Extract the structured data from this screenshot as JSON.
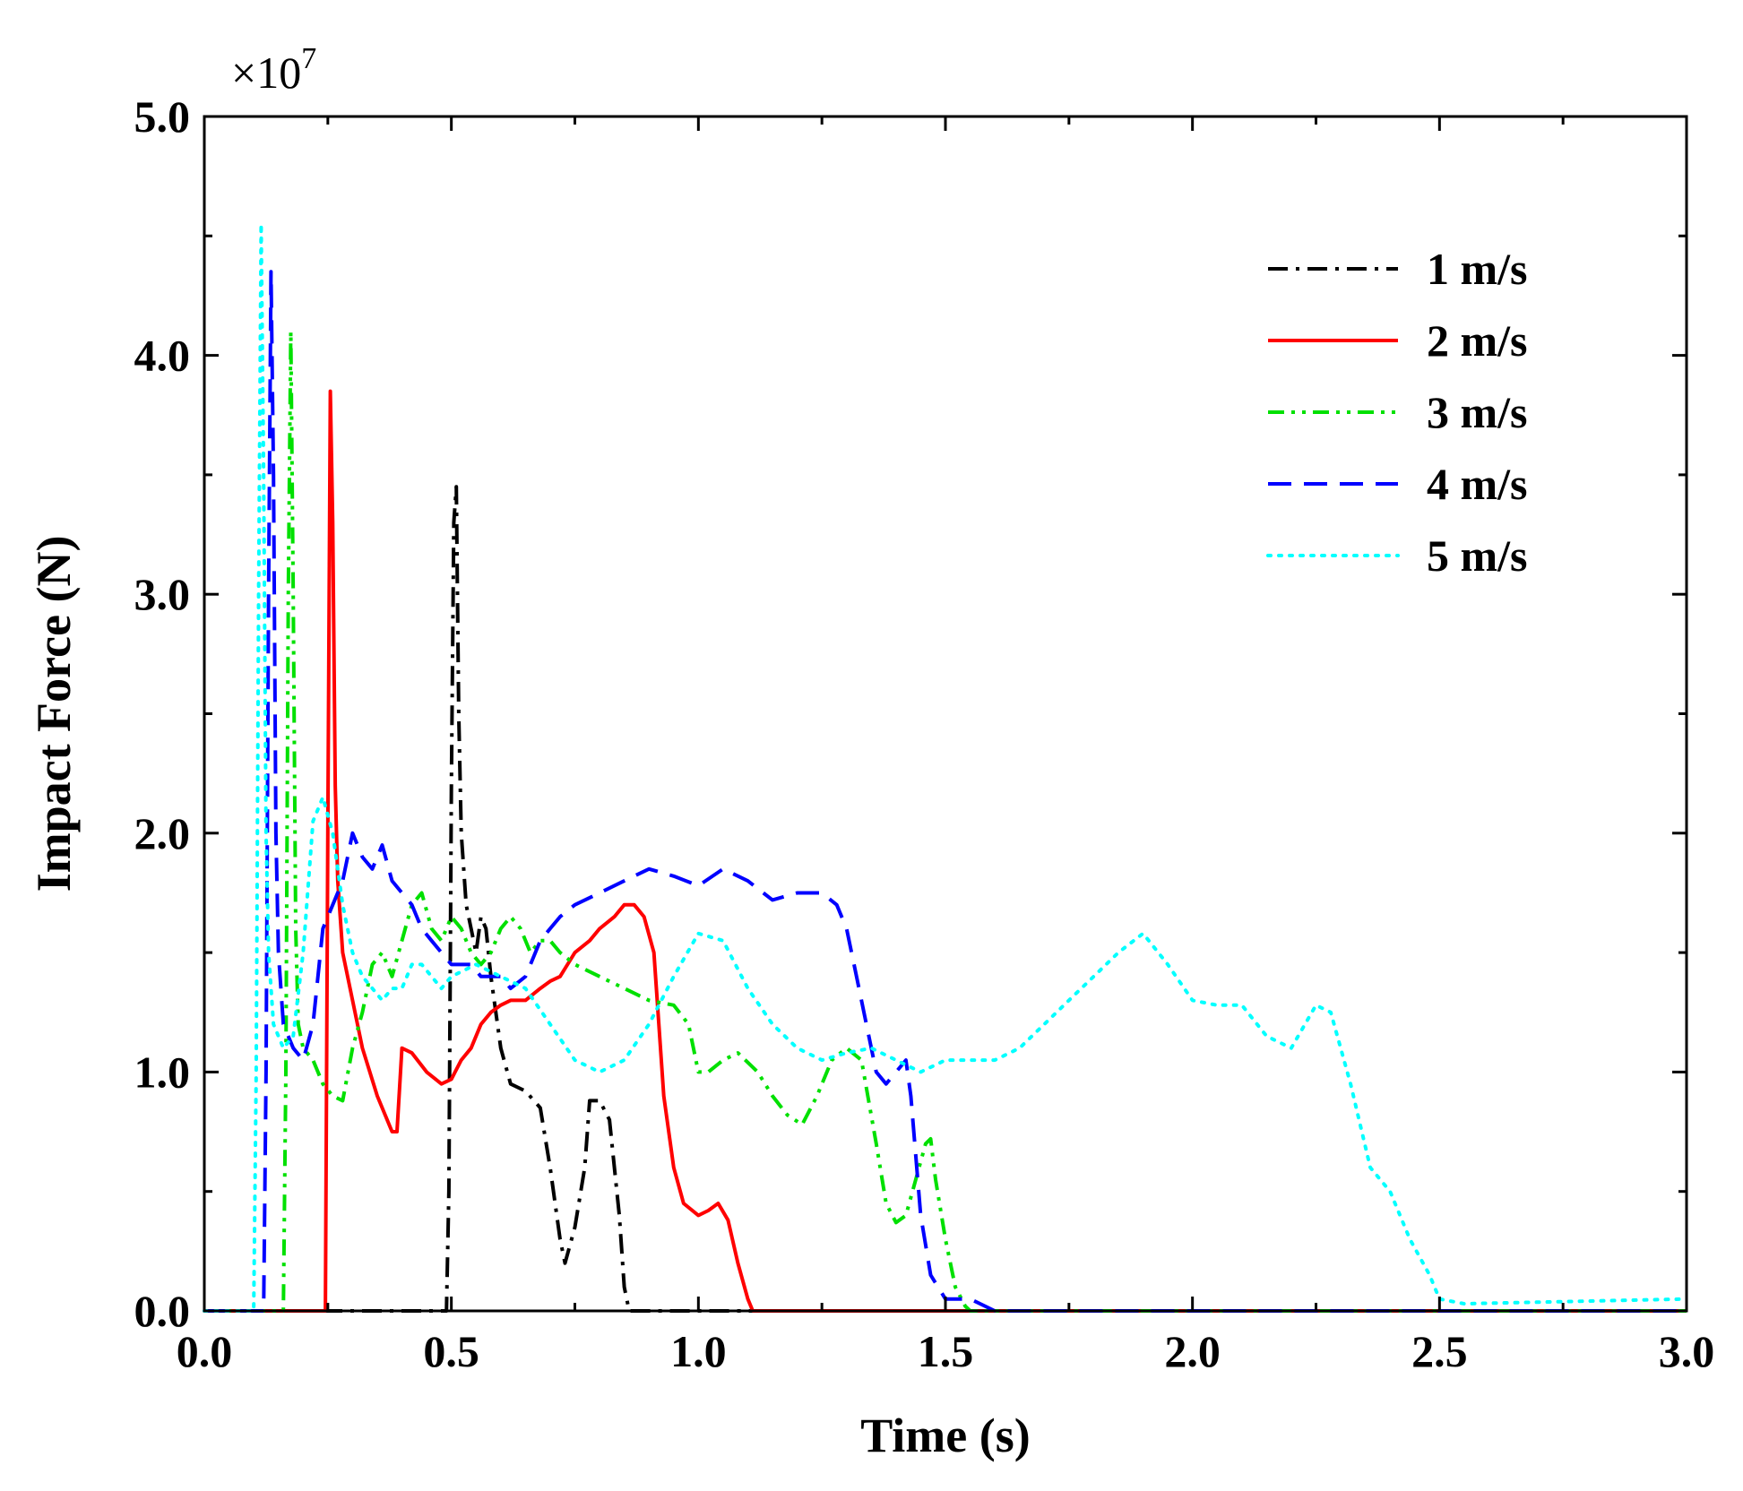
{
  "chart_data": {
    "type": "line",
    "title": "",
    "xlabel": "Time (s)",
    "ylabel": "Impact Force (N)",
    "xlim": [
      0.0,
      3.0
    ],
    "ylim": [
      0.0,
      5.0
    ],
    "x_ticks": [
      "0.0",
      "0.5",
      "1.0",
      "1.5",
      "2.0",
      "2.5",
      "3.0"
    ],
    "y_ticks": [
      "0.0",
      "1.0",
      "2.0",
      "3.0",
      "4.0",
      "5.0"
    ],
    "y_multiplier": {
      "base": "×10",
      "exponent": "7"
    },
    "legend_position": "top-right",
    "series": [
      {
        "name": "1 m/s",
        "color": "#000000",
        "style": "dashdot",
        "points": [
          [
            0,
            0
          ],
          [
            0.49,
            0
          ],
          [
            0.495,
            0.5
          ],
          [
            0.5,
            2.2
          ],
          [
            0.505,
            3.3
          ],
          [
            0.51,
            3.45
          ],
          [
            0.515,
            2.5
          ],
          [
            0.52,
            2.0
          ],
          [
            0.53,
            1.7
          ],
          [
            0.54,
            1.6
          ],
          [
            0.55,
            1.5
          ],
          [
            0.56,
            1.65
          ],
          [
            0.57,
            1.6
          ],
          [
            0.58,
            1.4
          ],
          [
            0.6,
            1.1
          ],
          [
            0.62,
            0.95
          ],
          [
            0.65,
            0.92
          ],
          [
            0.68,
            0.85
          ],
          [
            0.7,
            0.6
          ],
          [
            0.72,
            0.3
          ],
          [
            0.73,
            0.2
          ],
          [
            0.75,
            0.35
          ],
          [
            0.77,
            0.6
          ],
          [
            0.78,
            0.88
          ],
          [
            0.8,
            0.88
          ],
          [
            0.82,
            0.8
          ],
          [
            0.84,
            0.4
          ],
          [
            0.85,
            0.1
          ],
          [
            0.86,
            0
          ],
          [
            3.0,
            0
          ]
        ]
      },
      {
        "name": "2 m/s",
        "color": "#ff0000",
        "style": "solid",
        "points": [
          [
            0,
            0
          ],
          [
            0.245,
            0
          ],
          [
            0.25,
            2.0
          ],
          [
            0.255,
            3.85
          ],
          [
            0.26,
            3.3
          ],
          [
            0.265,
            2.2
          ],
          [
            0.27,
            1.8
          ],
          [
            0.28,
            1.5
          ],
          [
            0.3,
            1.3
          ],
          [
            0.32,
            1.1
          ],
          [
            0.35,
            0.9
          ],
          [
            0.38,
            0.75
          ],
          [
            0.39,
            0.75
          ],
          [
            0.4,
            1.1
          ],
          [
            0.42,
            1.08
          ],
          [
            0.45,
            1.0
          ],
          [
            0.48,
            0.95
          ],
          [
            0.5,
            0.97
          ],
          [
            0.52,
            1.05
          ],
          [
            0.54,
            1.1
          ],
          [
            0.56,
            1.2
          ],
          [
            0.58,
            1.25
          ],
          [
            0.6,
            1.28
          ],
          [
            0.62,
            1.3
          ],
          [
            0.65,
            1.3
          ],
          [
            0.68,
            1.35
          ],
          [
            0.7,
            1.38
          ],
          [
            0.72,
            1.4
          ],
          [
            0.75,
            1.5
          ],
          [
            0.78,
            1.55
          ],
          [
            0.8,
            1.6
          ],
          [
            0.83,
            1.65
          ],
          [
            0.85,
            1.7
          ],
          [
            0.87,
            1.7
          ],
          [
            0.89,
            1.65
          ],
          [
            0.91,
            1.5
          ],
          [
            0.92,
            1.2
          ],
          [
            0.93,
            0.9
          ],
          [
            0.95,
            0.6
          ],
          [
            0.97,
            0.45
          ],
          [
            1.0,
            0.4
          ],
          [
            1.02,
            0.42
          ],
          [
            1.04,
            0.45
          ],
          [
            1.06,
            0.38
          ],
          [
            1.08,
            0.2
          ],
          [
            1.1,
            0.05
          ],
          [
            1.11,
            0
          ],
          [
            3.0,
            0
          ]
        ]
      },
      {
        "name": "3 m/s",
        "color": "#00e000",
        "style": "dashdotdot",
        "points": [
          [
            0,
            0
          ],
          [
            0.16,
            0
          ],
          [
            0.165,
            1.0
          ],
          [
            0.17,
            3.0
          ],
          [
            0.175,
            4.1
          ],
          [
            0.18,
            3.0
          ],
          [
            0.185,
            1.6
          ],
          [
            0.19,
            1.2
          ],
          [
            0.2,
            1.1
          ],
          [
            0.22,
            1.05
          ],
          [
            0.24,
            0.95
          ],
          [
            0.26,
            0.9
          ],
          [
            0.28,
            0.88
          ],
          [
            0.3,
            1.1
          ],
          [
            0.32,
            1.25
          ],
          [
            0.34,
            1.45
          ],
          [
            0.36,
            1.5
          ],
          [
            0.38,
            1.4
          ],
          [
            0.4,
            1.55
          ],
          [
            0.42,
            1.7
          ],
          [
            0.44,
            1.75
          ],
          [
            0.46,
            1.6
          ],
          [
            0.48,
            1.55
          ],
          [
            0.5,
            1.65
          ],
          [
            0.52,
            1.6
          ],
          [
            0.54,
            1.5
          ],
          [
            0.56,
            1.45
          ],
          [
            0.58,
            1.5
          ],
          [
            0.6,
            1.6
          ],
          [
            0.62,
            1.65
          ],
          [
            0.64,
            1.6
          ],
          [
            0.66,
            1.5
          ],
          [
            0.68,
            1.55
          ],
          [
            0.7,
            1.55
          ],
          [
            0.72,
            1.5
          ],
          [
            0.75,
            1.45
          ],
          [
            0.8,
            1.4
          ],
          [
            0.85,
            1.35
          ],
          [
            0.9,
            1.3
          ],
          [
            0.95,
            1.28
          ],
          [
            0.98,
            1.2
          ],
          [
            1.0,
            1.0
          ],
          [
            1.02,
            1.0
          ],
          [
            1.05,
            1.05
          ],
          [
            1.08,
            1.08
          ],
          [
            1.12,
            1.0
          ],
          [
            1.15,
            0.9
          ],
          [
            1.18,
            0.82
          ],
          [
            1.21,
            0.78
          ],
          [
            1.24,
            0.9
          ],
          [
            1.27,
            1.05
          ],
          [
            1.3,
            1.1
          ],
          [
            1.33,
            1.05
          ],
          [
            1.36,
            0.7
          ],
          [
            1.38,
            0.45
          ],
          [
            1.4,
            0.37
          ],
          [
            1.42,
            0.4
          ],
          [
            1.44,
            0.55
          ],
          [
            1.46,
            0.7
          ],
          [
            1.47,
            0.72
          ],
          [
            1.48,
            0.55
          ],
          [
            1.5,
            0.3
          ],
          [
            1.52,
            0.1
          ],
          [
            1.54,
            0.02
          ],
          [
            1.55,
            0
          ],
          [
            3.0,
            0
          ]
        ]
      },
      {
        "name": "4 m/s",
        "color": "#0000ff",
        "style": "dashed",
        "points": [
          [
            0,
            0
          ],
          [
            0.12,
            0
          ],
          [
            0.125,
            1.0
          ],
          [
            0.13,
            3.0
          ],
          [
            0.135,
            4.35
          ],
          [
            0.14,
            3.5
          ],
          [
            0.145,
            2.0
          ],
          [
            0.15,
            1.5
          ],
          [
            0.16,
            1.2
          ],
          [
            0.18,
            1.1
          ],
          [
            0.2,
            1.05
          ],
          [
            0.22,
            1.2
          ],
          [
            0.24,
            1.6
          ],
          [
            0.26,
            1.7
          ],
          [
            0.28,
            1.8
          ],
          [
            0.3,
            2.0
          ],
          [
            0.32,
            1.9
          ],
          [
            0.34,
            1.85
          ],
          [
            0.36,
            1.95
          ],
          [
            0.38,
            1.8
          ],
          [
            0.4,
            1.75
          ],
          [
            0.42,
            1.7
          ],
          [
            0.44,
            1.6
          ],
          [
            0.46,
            1.55
          ],
          [
            0.48,
            1.5
          ],
          [
            0.5,
            1.45
          ],
          [
            0.52,
            1.45
          ],
          [
            0.54,
            1.45
          ],
          [
            0.56,
            1.4
          ],
          [
            0.58,
            1.4
          ],
          [
            0.6,
            1.4
          ],
          [
            0.62,
            1.35
          ],
          [
            0.65,
            1.4
          ],
          [
            0.68,
            1.55
          ],
          [
            0.7,
            1.6
          ],
          [
            0.72,
            1.65
          ],
          [
            0.75,
            1.7
          ],
          [
            0.8,
            1.75
          ],
          [
            0.85,
            1.8
          ],
          [
            0.9,
            1.85
          ],
          [
            0.95,
            1.82
          ],
          [
            1.0,
            1.78
          ],
          [
            1.05,
            1.85
          ],
          [
            1.1,
            1.8
          ],
          [
            1.15,
            1.72
          ],
          [
            1.2,
            1.75
          ],
          [
            1.25,
            1.75
          ],
          [
            1.28,
            1.7
          ],
          [
            1.3,
            1.6
          ],
          [
            1.32,
            1.4
          ],
          [
            1.34,
            1.2
          ],
          [
            1.36,
            1.0
          ],
          [
            1.38,
            0.95
          ],
          [
            1.4,
            1.0
          ],
          [
            1.42,
            1.05
          ],
          [
            1.43,
            0.9
          ],
          [
            1.45,
            0.4
          ],
          [
            1.47,
            0.15
          ],
          [
            1.5,
            0.05
          ],
          [
            1.55,
            0.05
          ],
          [
            1.6,
            0
          ],
          [
            3.0,
            0
          ]
        ]
      },
      {
        "name": "5 m/s",
        "color": "#00ffff",
        "style": "dotted",
        "points": [
          [
            0,
            0
          ],
          [
            0.1,
            0
          ],
          [
            0.105,
            1.0
          ],
          [
            0.11,
            3.0
          ],
          [
            0.115,
            4.55
          ],
          [
            0.12,
            3.5
          ],
          [
            0.125,
            2.0
          ],
          [
            0.13,
            1.5
          ],
          [
            0.14,
            1.2
          ],
          [
            0.16,
            1.1
          ],
          [
            0.18,
            1.15
          ],
          [
            0.2,
            1.5
          ],
          [
            0.22,
            2.05
          ],
          [
            0.24,
            2.15
          ],
          [
            0.26,
            2.0
          ],
          [
            0.28,
            1.7
          ],
          [
            0.3,
            1.5
          ],
          [
            0.32,
            1.4
          ],
          [
            0.34,
            1.35
          ],
          [
            0.36,
            1.3
          ],
          [
            0.38,
            1.35
          ],
          [
            0.4,
            1.35
          ],
          [
            0.42,
            1.45
          ],
          [
            0.44,
            1.45
          ],
          [
            0.46,
            1.4
          ],
          [
            0.48,
            1.35
          ],
          [
            0.5,
            1.4
          ],
          [
            0.55,
            1.45
          ],
          [
            0.6,
            1.4
          ],
          [
            0.65,
            1.35
          ],
          [
            0.7,
            1.2
          ],
          [
            0.75,
            1.05
          ],
          [
            0.8,
            1.0
          ],
          [
            0.85,
            1.05
          ],
          [
            0.9,
            1.2
          ],
          [
            0.95,
            1.4
          ],
          [
            1.0,
            1.58
          ],
          [
            1.05,
            1.55
          ],
          [
            1.1,
            1.35
          ],
          [
            1.15,
            1.2
          ],
          [
            1.2,
            1.1
          ],
          [
            1.25,
            1.05
          ],
          [
            1.3,
            1.08
          ],
          [
            1.35,
            1.1
          ],
          [
            1.4,
            1.05
          ],
          [
            1.45,
            1.0
          ],
          [
            1.5,
            1.05
          ],
          [
            1.55,
            1.05
          ],
          [
            1.6,
            1.05
          ],
          [
            1.65,
            1.1
          ],
          [
            1.7,
            1.2
          ],
          [
            1.75,
            1.3
          ],
          [
            1.8,
            1.4
          ],
          [
            1.85,
            1.5
          ],
          [
            1.9,
            1.58
          ],
          [
            1.95,
            1.45
          ],
          [
            2.0,
            1.3
          ],
          [
            2.05,
            1.28
          ],
          [
            2.1,
            1.28
          ],
          [
            2.15,
            1.15
          ],
          [
            2.2,
            1.1
          ],
          [
            2.25,
            1.28
          ],
          [
            2.28,
            1.25
          ],
          [
            2.32,
            0.95
          ],
          [
            2.36,
            0.6
          ],
          [
            2.4,
            0.5
          ],
          [
            2.44,
            0.3
          ],
          [
            2.48,
            0.15
          ],
          [
            2.5,
            0.05
          ],
          [
            2.55,
            0.03
          ],
          [
            3.0,
            0.05
          ]
        ]
      }
    ]
  }
}
